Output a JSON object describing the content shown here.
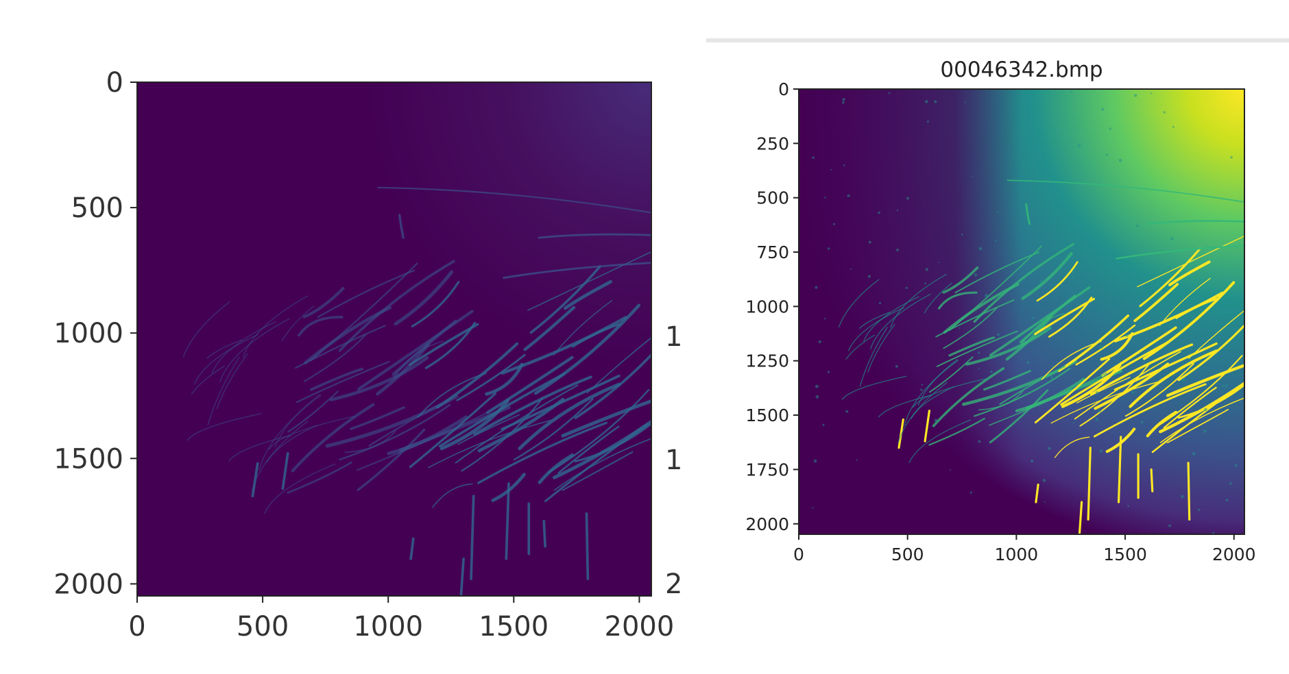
{
  "left_panel": {
    "y_ticks": [
      "0",
      "500",
      "1000",
      "1500",
      "2000"
    ],
    "x_ticks": [
      "0",
      "500",
      "1000",
      "1500",
      "2000"
    ],
    "cropped_fragments": [
      "1",
      "1",
      "2"
    ],
    "image_colors": {
      "background": "#440154",
      "streak": "#3b528b",
      "streak_bright": "#31688e"
    }
  },
  "right_panel": {
    "title": "00046342.bmp",
    "y_ticks": [
      "0",
      "250",
      "500",
      "750",
      "1000",
      "1250",
      "1500",
      "1750",
      "2000"
    ],
    "x_ticks": [
      "0",
      "500",
      "1000",
      "1500",
      "2000"
    ],
    "image_colors": {
      "background": "#440154",
      "mid": "#21918c",
      "streak": "#35b779",
      "bright": "#fde725"
    }
  }
}
